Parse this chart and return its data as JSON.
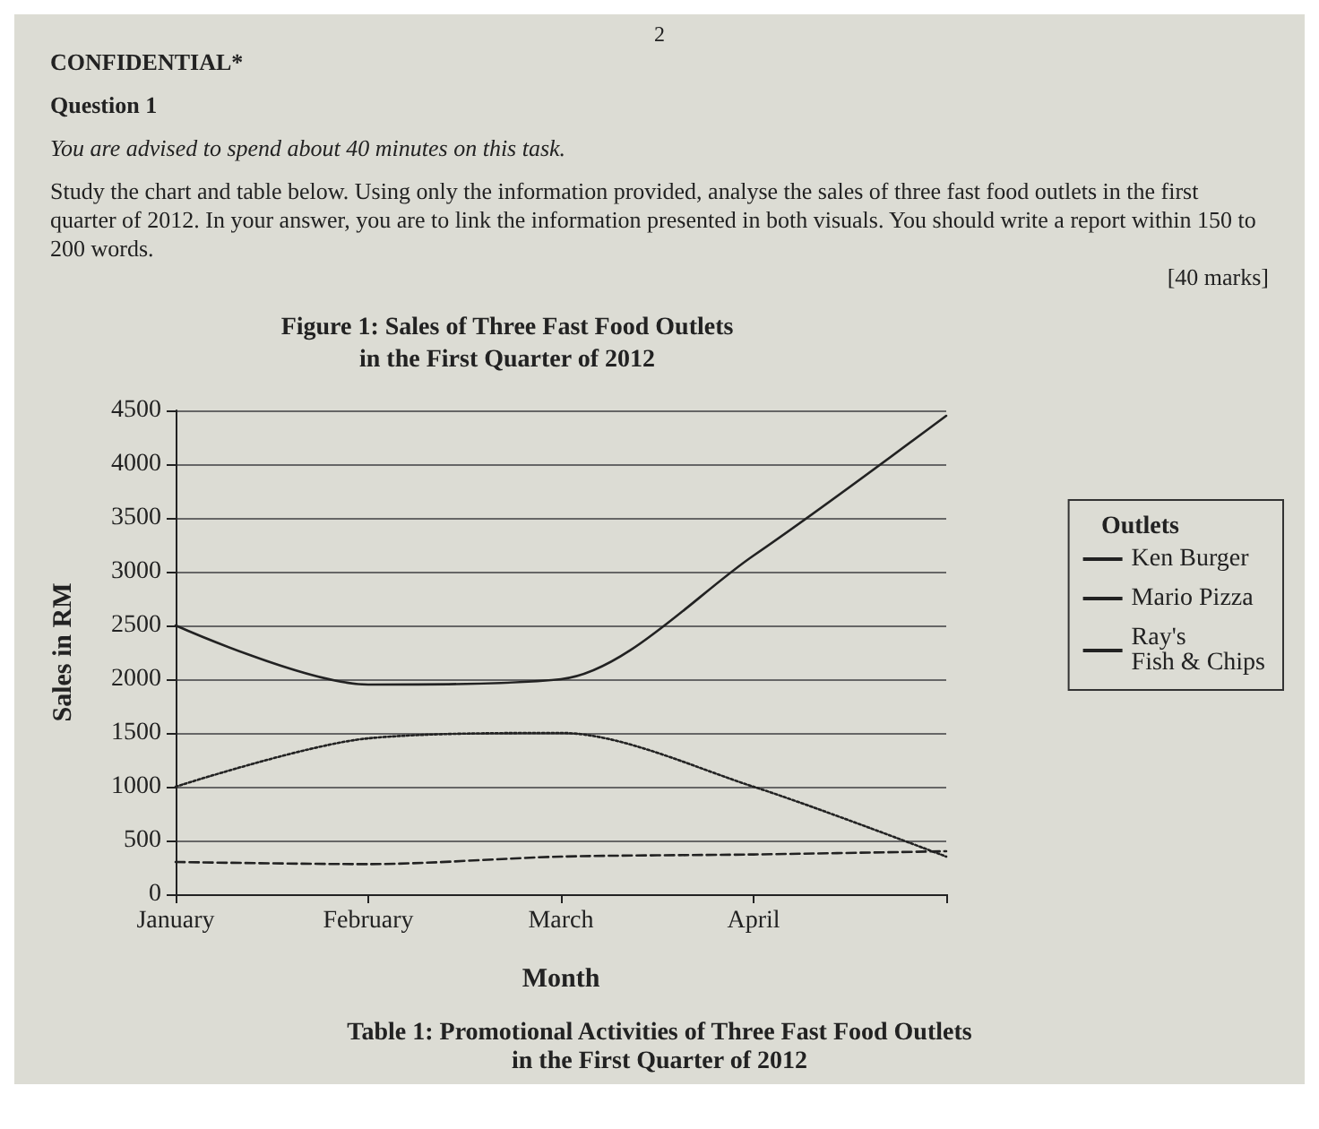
{
  "chart_data": {
    "type": "line",
    "title": "Figure 1: Sales of Three Fast Food Outlets\nin the First Quarter of 2012",
    "xlabel": "Month",
    "ylabel": "Sales in RM",
    "legend_title": "Outlets",
    "annotations": [
      "2",
      "CONFIDENTIAL*",
      "Question 1",
      "You are advised to spend about 40 minutes on this task.",
      "Study the chart and table below. Using only the information provided, analyse the sales of three fast food outlets in the first quarter of 2012. In your answer, you are to link the information presented in both visuals. You should write a report within 150 to 200 words.",
      "[40 marks]",
      "Table 1: Promotional Activities of Three Fast Food Outlets\nin the First Quarter of 2012"
    ],
    "categories": [
      "January",
      "February",
      "March",
      "April",
      null
    ],
    "series": [
      {
        "name": "Ken Burger",
        "color": "#222222",
        "line_style": "solid",
        "values": [
          2500,
          1950,
          2000,
          3150,
          4450
        ]
      },
      {
        "name": "Mario Pizza",
        "color": "#222222",
        "line_style": "dotted",
        "values": [
          1000,
          1450,
          1500,
          1000,
          350
        ]
      },
      {
        "name": "Ray's\nFish & Chips",
        "color": "#222222",
        "line_style": "dashed",
        "values": [
          300,
          280,
          350,
          370,
          400
        ]
      }
    ],
    "ylim": [
      0,
      4500
    ],
    "yticks": [
      0,
      500,
      1000,
      1500,
      2000,
      2500,
      3000,
      3500,
      4000,
      4500
    ],
    "grid": "y",
    "legend": "right",
    "marker": "none"
  }
}
